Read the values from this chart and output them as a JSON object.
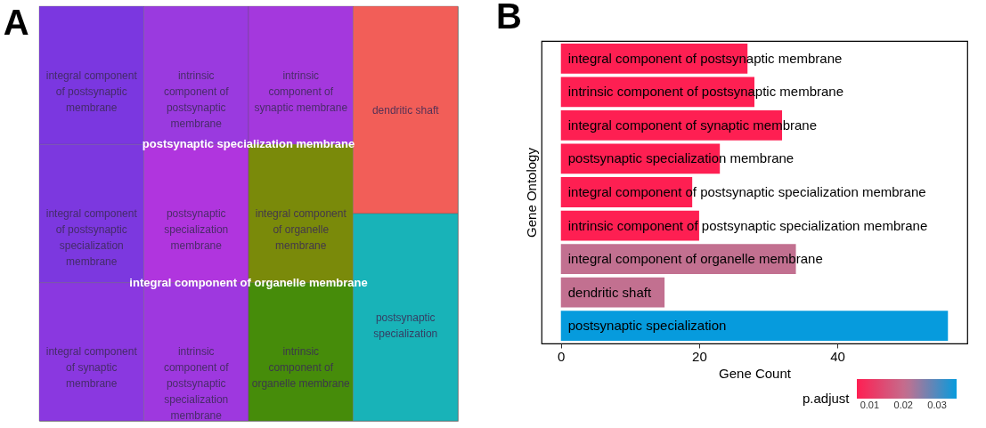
{
  "chart_data": [
    {
      "type": "other",
      "title": "A",
      "categories": [
        "integral component of postsynaptic membrane",
        "integral component of postsynaptic specialization membrane",
        "integral component of synaptic membrane",
        "intrinsic component of postsynaptic membrane",
        "postsynaptic specialization membrane",
        "intrinsic component of postsynaptic specialization membrane",
        "intrinsic component of synaptic membrane",
        "integral component of organelle membrane",
        "intrinsic component of organelle membrane",
        "dendritic shaft",
        "postsynaptic specialization"
      ],
      "colors": [
        "#7b37e0",
        "#7c38df",
        "#8a38e0",
        "#9a3adf",
        "#b035de",
        "#9e38df",
        "#a438dd",
        "#7a8a0a",
        "#468c0a",
        "#f25e58",
        "#18b3b8"
      ],
      "annotations": [
        "postsynaptic specialization membrane",
        "integral component of organelle membrane"
      ]
    },
    {
      "type": "bar",
      "title": "B",
      "orientation": "horizontal",
      "categories": [
        "integral component of postsynaptic membrane",
        "intrinsic component of postsynaptic membrane",
        "integral component of synaptic membrane",
        "postsynaptic specialization membrane",
        "integral component of postsynaptic specialization membrane",
        "intrinsic component of postsynaptic specialization membrane",
        "integral component of organelle membrane",
        "dendritic shaft",
        "postsynaptic specialization"
      ],
      "values": [
        27,
        28,
        32,
        23,
        19,
        20,
        34,
        15,
        56
      ],
      "cvalues": [
        0.0062,
        0.0062,
        0.0062,
        0.0062,
        0.0062,
        0.0062,
        0.021,
        0.021,
        0.0358
      ],
      "colors": [
        "#fe1f52",
        "#fe1f52",
        "#fe1f52",
        "#fe1f52",
        "#fe1f52",
        "#fe1f52",
        "#c27090",
        "#c27090",
        "#069bdd"
      ],
      "clim": [
        0.0062,
        0.0358
      ],
      "cticks": [
        0.01,
        0.02,
        0.03
      ],
      "legend_title": "p.adjust",
      "xlim": [
        -2.8,
        58.8
      ],
      "xticks": [
        0,
        20,
        40
      ],
      "xlabel": "Gene Count",
      "ylabel": "Gene  Ontology",
      "grid": false,
      "tick_labels": "x"
    }
  ]
}
